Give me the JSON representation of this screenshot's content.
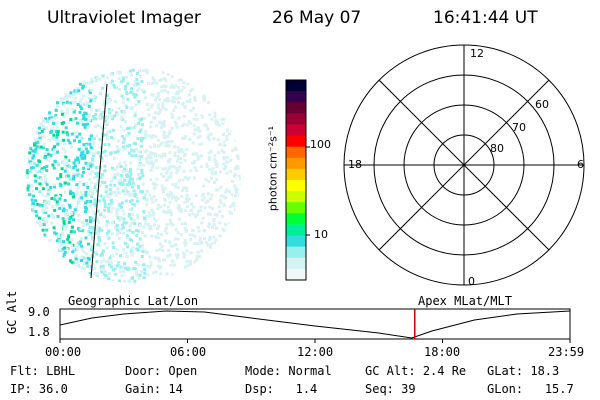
{
  "header": {
    "instrument": "Ultraviolet Imager",
    "date": "26 May 07",
    "time": "16:41:44 UT"
  },
  "colorbar": {
    "unit_label": "photon cm⁻²s⁻¹",
    "ticks": [
      {
        "label": "100",
        "value": 100
      },
      {
        "label": "10",
        "value": 10
      }
    ],
    "colors": [
      "#000033",
      "#33004d",
      "#660033",
      "#990033",
      "#cc0033",
      "#ff0000",
      "#ff6600",
      "#ff9900",
      "#ffcc00",
      "#ffff00",
      "#ccff00",
      "#66ff00",
      "#00ff33",
      "#00ee99",
      "#33dddd",
      "#99eeee",
      "#d7f2f2",
      "#f0f8f8"
    ]
  },
  "polar_plot": {
    "mlt_labels": [
      {
        "label": "12",
        "pos": "top"
      },
      {
        "label": "18",
        "pos": "left"
      },
      {
        "label": "6",
        "pos": "right"
      },
      {
        "label": "0",
        "pos": "bottom"
      }
    ],
    "lat_labels": [
      "60",
      "70",
      "80"
    ]
  },
  "timeline": {
    "axis_title": "GC Alt",
    "y_ticks": [
      "9.0",
      "1.8"
    ],
    "left_label": "Geographic Lat/Lon",
    "right_label": "Apex MLat/MLT",
    "x_ticks": [
      "00:00",
      "06:00",
      "12:00",
      "18:00",
      "23:59"
    ],
    "marker_time_hours": 16.695,
    "marker_color": "#cc0000"
  },
  "status": {
    "row1": [
      {
        "key": "Flt:",
        "value": "LBHL"
      },
      {
        "key": "Door:",
        "value": "Open"
      },
      {
        "key": "Mode:",
        "value": "Normal"
      },
      {
        "key": "GC Alt:",
        "value": "2.4 Re"
      },
      {
        "key": "GLat:",
        "value": "18.3"
      }
    ],
    "row2": [
      {
        "key": "IP:",
        "value": "36.0"
      },
      {
        "key": "Gain:",
        "value": "14"
      },
      {
        "key": "Dsp:",
        "value": "1.4"
      },
      {
        "key": "Seq:",
        "value": "39"
      },
      {
        "key": "GLon:",
        "value": "15.7"
      }
    ]
  }
}
